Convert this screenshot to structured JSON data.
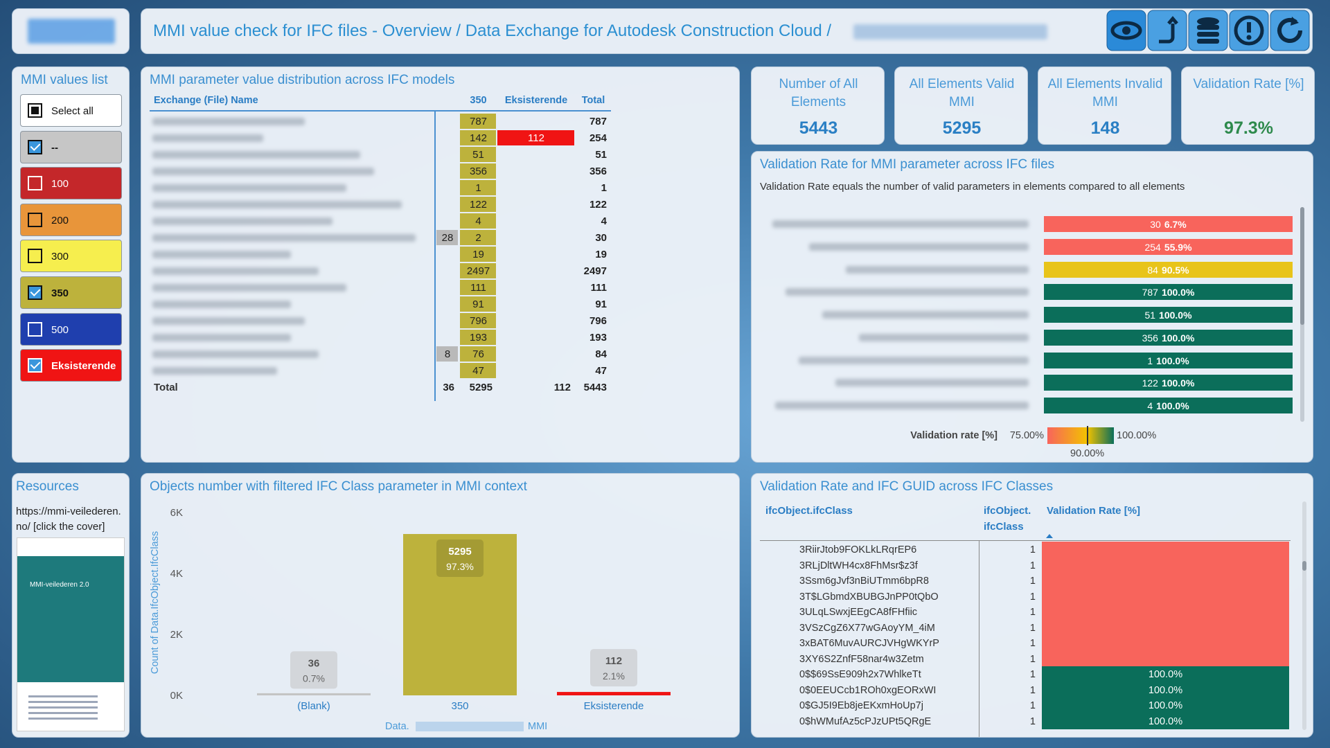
{
  "header": {
    "title": "MMI value check for IFC files - Overview / Data Exchange for Autodesk Construction Cloud /"
  },
  "slicer": {
    "title": "MMI values list",
    "items": [
      {
        "label": "Select all",
        "checked": false,
        "color": "#ffffff"
      },
      {
        "label": "--",
        "checked": true,
        "color": "#c6c6c6"
      },
      {
        "label": "100",
        "checked": false,
        "color": "#c4272a"
      },
      {
        "label": "200",
        "checked": false,
        "color": "#e8953a"
      },
      {
        "label": "300",
        "checked": false,
        "color": "#f6ee4e"
      },
      {
        "label": "350",
        "checked": true,
        "color": "#bdb23c"
      },
      {
        "label": "500",
        "checked": false,
        "color": "#1f3fae"
      },
      {
        "label": "Eksisterende",
        "checked": true,
        "color": "#f01414"
      }
    ]
  },
  "matrix": {
    "title": "MMI parameter value distribution across IFC models",
    "columns": [
      "Exchange (File) Name",
      null,
      "350",
      "Eksisterende",
      "Total"
    ],
    "column_colors": [
      null,
      "#b9b9b9",
      "#bdb23c",
      "#f01414",
      null
    ],
    "rows": [
      [
        null,
        787,
        null,
        787
      ],
      [
        null,
        142,
        112,
        254
      ],
      [
        null,
        51,
        null,
        51
      ],
      [
        null,
        356,
        null,
        356
      ],
      [
        null,
        1,
        null,
        1
      ],
      [
        null,
        122,
        null,
        122
      ],
      [
        null,
        4,
        null,
        4
      ],
      [
        28,
        2,
        null,
        30
      ],
      [
        null,
        19,
        null,
        19
      ],
      [
        null,
        2497,
        null,
        2497
      ],
      [
        null,
        111,
        null,
        111
      ],
      [
        null,
        91,
        null,
        91
      ],
      [
        null,
        796,
        null,
        796
      ],
      [
        null,
        193,
        null,
        193
      ],
      [
        8,
        76,
        null,
        84
      ],
      [
        null,
        47,
        null,
        47
      ]
    ],
    "total": {
      "label": "Total",
      "values": [
        36,
        5295,
        112,
        5443
      ]
    }
  },
  "cards": [
    {
      "label": "Number of All Elements",
      "value": 5443,
      "color": "#2a7fc4"
    },
    {
      "label": "All Elements Valid MMI",
      "value": 5295,
      "color": "#2a7fc4"
    },
    {
      "label": "All Elements Invalid MMI",
      "value": 148,
      "color": "#2a7fc4"
    },
    {
      "label": "Validation Rate [%]",
      "value": 97.3,
      "value_label": "97.3%",
      "color": "#2e8a4c"
    }
  ],
  "validation_chart": {
    "title": "Validation Rate for MMI parameter across IFC files",
    "subtitle": "Validation Rate equals the number of valid parameters in elements compared to all elements",
    "counts": [
      30,
      254,
      84,
      787,
      51,
      356,
      1,
      122,
      4
    ],
    "values": [
      6.7,
      55.9,
      90.5,
      100,
      100,
      100,
      100,
      100,
      100
    ],
    "value_labels": [
      "6.7%",
      "55.9%",
      "90.5%",
      "100.0%",
      "100.0%",
      "100.0%",
      "100.0%",
      "100.0%",
      "100.0%"
    ],
    "colors": [
      "#f8645c",
      "#f8645c",
      "#e8c41a",
      "#0b6e5a",
      "#0b6e5a",
      "#0b6e5a",
      "#0b6e5a",
      "#0b6e5a",
      "#0b6e5a"
    ],
    "legend": {
      "title": "Validation rate [%]",
      "stops": [
        {
          "value": 75,
          "label": "75.00%",
          "color": "#f8645c"
        },
        {
          "value": 90,
          "label": "90.00%",
          "color": "#f2c200"
        },
        {
          "value": 100,
          "label": "100.00%",
          "color": "#0b6e5a"
        }
      ]
    }
  },
  "resources": {
    "title": "Resources",
    "text": "https://mmi-veilederen.no/ [click the cover]",
    "cover_title": "MMI-veilederen 2.0"
  },
  "column_chart": {
    "type": "bar",
    "title": "Objects number with filtered IFC Class parameter in MMI context",
    "y_label": "Count of Data.IfcObject.IfcClass",
    "x_label": [
      "Data.",
      "MMI"
    ],
    "categories": [
      "(Blank)",
      "350",
      "Eksisterende"
    ],
    "values": [
      36,
      5295,
      112
    ],
    "colors": [
      "#c4c4c4",
      "#bdb23c",
      "#f01414"
    ],
    "percent": [
      0.7,
      97.3,
      2.1
    ],
    "percent_labels": [
      "0.7%",
      "97.3%",
      "2.1%"
    ],
    "ylim": [
      0,
      6000
    ],
    "yticks": [
      {
        "value": 0,
        "label": "0K"
      },
      {
        "value": 2000,
        "label": "2K"
      },
      {
        "value": 4000,
        "label": "4K"
      },
      {
        "value": 6000,
        "label": "6K"
      }
    ]
  },
  "table": {
    "title": "Validation Rate and IFC GUID across IFC Classes",
    "columns": [
      "ifcObject.ifcClass",
      "ifcObject. ifcClass",
      "Validation Rate [%]"
    ],
    "rows": [
      {
        "guid": "3RiirJtob9FOKLkLRqrEP6",
        "count": 1,
        "color": "#f8645c"
      },
      {
        "guid": "3RLjDltWH4cx8FhMsr$z3f",
        "count": 1,
        "color": "#f8645c"
      },
      {
        "guid": "3Ssm6gJvf3nBiUTmm6bpR8",
        "count": 1,
        "color": "#f8645c"
      },
      {
        "guid": "3T$LGbmdXBUBGJnPP0tQbO",
        "count": 1,
        "color": "#f8645c"
      },
      {
        "guid": "3ULqLSwxjEEgCA8fFHfiic",
        "count": 1,
        "color": "#f8645c"
      },
      {
        "guid": "3VSzCgZ6X77wGAoyYM_4iM",
        "count": 1,
        "color": "#f8645c"
      },
      {
        "guid": "3xBAT6MuvAURCJVHgWKYrP",
        "count": 1,
        "color": "#f8645c"
      },
      {
        "guid": "3XY6S2ZnfF58nar4w3Zetm",
        "count": 1,
        "color": "#f8645c"
      },
      {
        "guid": "0$$69SsE909h2x7WhlkeTt",
        "count": 1,
        "rate": 100,
        "rate_label": "100.0%",
        "color": "#0b6e5a"
      },
      {
        "guid": "0$0EEUCcb1ROh0xgEORxWI",
        "count": 1,
        "rate": 100,
        "rate_label": "100.0%",
        "color": "#0b6e5a"
      },
      {
        "guid": "0$GJ5I9Eb8jeEKxmHoUp7j",
        "count": 1,
        "rate": 100,
        "rate_label": "100.0%",
        "color": "#0b6e5a"
      },
      {
        "guid": "0$hWMufAz5cPJzUPt5QRgE",
        "count": 1,
        "rate": 100,
        "rate_label": "100.0%",
        "color": "#0b6e5a"
      }
    ]
  }
}
